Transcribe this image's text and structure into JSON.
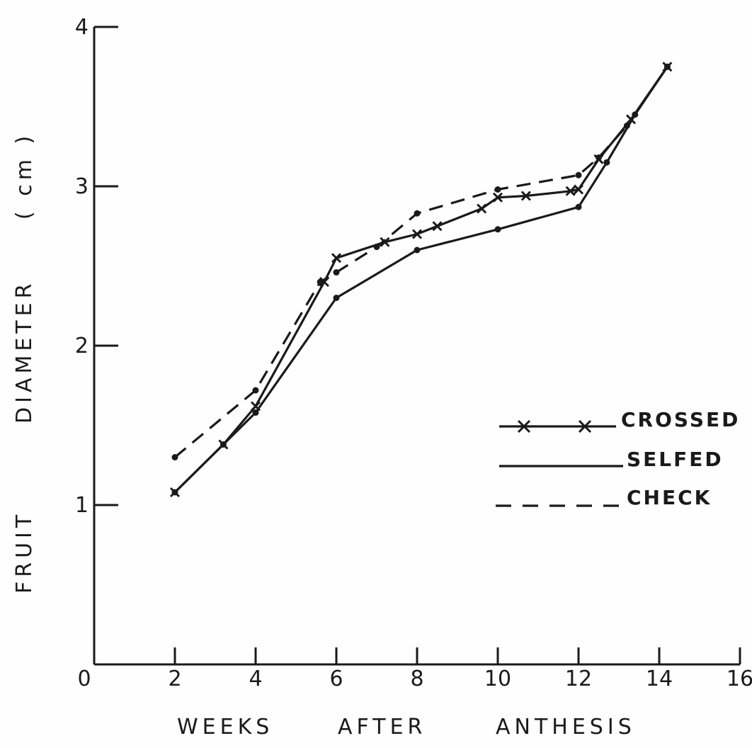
{
  "chart_data": {
    "type": "line",
    "xlabel": "WEEKS AFTER ANTHESIS",
    "xlabel_words": [
      "WEEKS",
      "AFTER",
      "ANTHESIS"
    ],
    "ylabel": "FRUIT DIAMETER (cm)",
    "ylabel_words": [
      "FRUIT",
      "DIAMETER",
      "( cm )"
    ],
    "xlim": [
      0,
      16
    ],
    "ylim": [
      0,
      4
    ],
    "x_ticks": [
      0,
      2,
      4,
      6,
      8,
      10,
      12,
      14,
      16
    ],
    "x_tick_labels": [
      "0",
      "2",
      "4",
      "6",
      "8",
      "10",
      "12",
      "14",
      "16"
    ],
    "y_ticks": [
      1,
      2,
      3,
      4
    ],
    "y_tick_labels": [
      "1",
      "2",
      "3",
      "4"
    ],
    "grid": false,
    "legend_position": "right",
    "series": [
      {
        "name": "CROSSED",
        "style": "solid-x",
        "x": [
          2,
          3.2,
          4,
          5.7,
          6,
          7.2,
          8,
          8.5,
          9.6,
          10,
          10.7,
          11.8,
          12,
          12.5,
          13.3,
          14.2
        ],
        "y": [
          1.08,
          1.38,
          1.62,
          2.4,
          2.55,
          2.65,
          2.7,
          2.75,
          2.86,
          2.93,
          2.94,
          2.97,
          2.98,
          3.17,
          3.42,
          3.75
        ]
      },
      {
        "name": "SELFED",
        "style": "solid",
        "x": [
          2,
          3.2,
          4,
          6,
          8,
          10,
          12,
          12.7,
          13.4,
          14.2
        ],
        "y": [
          1.08,
          1.38,
          1.58,
          2.3,
          2.6,
          2.73,
          2.87,
          3.15,
          3.45,
          3.75
        ]
      },
      {
        "name": "CHECK",
        "style": "dashed",
        "x": [
          2,
          4,
          5.6,
          6,
          7,
          8,
          10,
          12,
          12.5,
          13.2,
          14.2
        ],
        "y": [
          1.3,
          1.72,
          2.4,
          2.46,
          2.62,
          2.83,
          2.98,
          3.07,
          3.18,
          3.38,
          3.75
        ]
      }
    ]
  }
}
